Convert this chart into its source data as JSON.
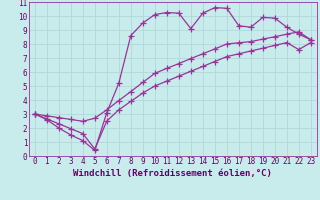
{
  "xlabel": "Windchill (Refroidissement éolien,°C)",
  "background_color": "#c8ecec",
  "grid_color": "#b0d8d8",
  "line_color": "#993399",
  "xlim": [
    -0.5,
    23.5
  ],
  "ylim": [
    0,
    11
  ],
  "xticks": [
    0,
    1,
    2,
    3,
    4,
    5,
    6,
    7,
    8,
    9,
    10,
    11,
    12,
    13,
    14,
    15,
    16,
    17,
    18,
    19,
    20,
    21,
    22,
    23
  ],
  "yticks": [
    0,
    1,
    2,
    3,
    4,
    5,
    6,
    7,
    8,
    9,
    10,
    11
  ],
  "line1_x": [
    0,
    1,
    2,
    3,
    4,
    5,
    6,
    7,
    8,
    9,
    10,
    11,
    12,
    13,
    14,
    15,
    16,
    17,
    18,
    19,
    20,
    21,
    22,
    23
  ],
  "line1_y": [
    3.0,
    2.6,
    2.0,
    1.5,
    1.1,
    0.4,
    3.1,
    5.2,
    8.6,
    9.5,
    10.1,
    10.25,
    10.2,
    9.1,
    10.2,
    10.6,
    10.55,
    9.3,
    9.2,
    9.9,
    9.85,
    9.2,
    8.7,
    8.3
  ],
  "line2_x": [
    0,
    1,
    2,
    3,
    4,
    5,
    6,
    7,
    8,
    9,
    10,
    11,
    12,
    13,
    14,
    15,
    16,
    17,
    18,
    19,
    20,
    21,
    22,
    23
  ],
  "line2_y": [
    3.0,
    2.87,
    2.74,
    2.61,
    2.48,
    2.7,
    3.3,
    3.96,
    4.6,
    5.26,
    5.9,
    6.26,
    6.6,
    6.96,
    7.3,
    7.65,
    8.0,
    8.09,
    8.17,
    8.35,
    8.52,
    8.7,
    8.87,
    8.3
  ],
  "line3_x": [
    0,
    1,
    2,
    3,
    4,
    5,
    6,
    7,
    8,
    9,
    10,
    11,
    12,
    13,
    14,
    15,
    16,
    17,
    18,
    19,
    20,
    21,
    22,
    23
  ],
  "line3_y": [
    3.0,
    2.65,
    2.3,
    1.95,
    1.6,
    0.5,
    2.5,
    3.3,
    3.9,
    4.5,
    5.0,
    5.35,
    5.7,
    6.05,
    6.4,
    6.75,
    7.1,
    7.3,
    7.5,
    7.7,
    7.9,
    8.1,
    7.6,
    8.1
  ],
  "marker": "+",
  "markersize": 4,
  "linewidth": 0.9,
  "tick_fontsize": 5.5,
  "label_fontsize": 6.5
}
